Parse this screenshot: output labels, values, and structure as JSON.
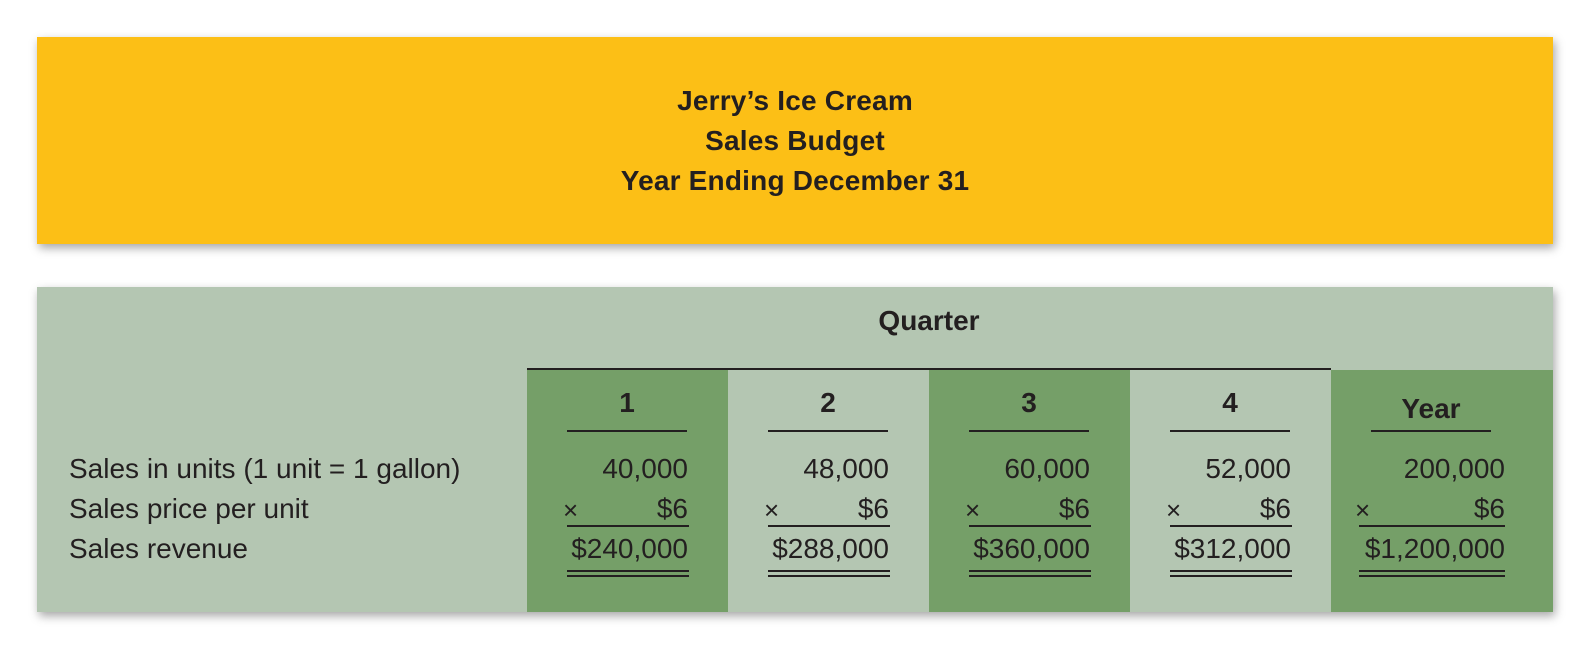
{
  "header": {
    "company": "Jerry’s Ice Cream",
    "report": "Sales Budget",
    "period": "Year Ending December 31"
  },
  "table": {
    "group_title": "Quarter",
    "row_labels": {
      "units": "Sales in units (1 unit = 1 gallon)",
      "price": "Sales price per unit",
      "revenue": "Sales revenue"
    },
    "times_symbol": "×",
    "columns": [
      {
        "heading": "1",
        "units": "40,000",
        "price": "$6",
        "revenue": "$240,000"
      },
      {
        "heading": "2",
        "units": "48,000",
        "price": "$6",
        "revenue": "$288,000"
      },
      {
        "heading": "3",
        "units": "60,000",
        "price": "$6",
        "revenue": "$360,000"
      },
      {
        "heading": "4",
        "units": "52,000",
        "price": "$6",
        "revenue": "$312,000"
      },
      {
        "heading": "Year",
        "units": "200,000",
        "price": "$6",
        "revenue": "$1,200,000"
      }
    ],
    "colors": {
      "header_fill": "#fcbf16",
      "table_fill": "#b4c6b2",
      "dark_band": "#759f68"
    }
  }
}
